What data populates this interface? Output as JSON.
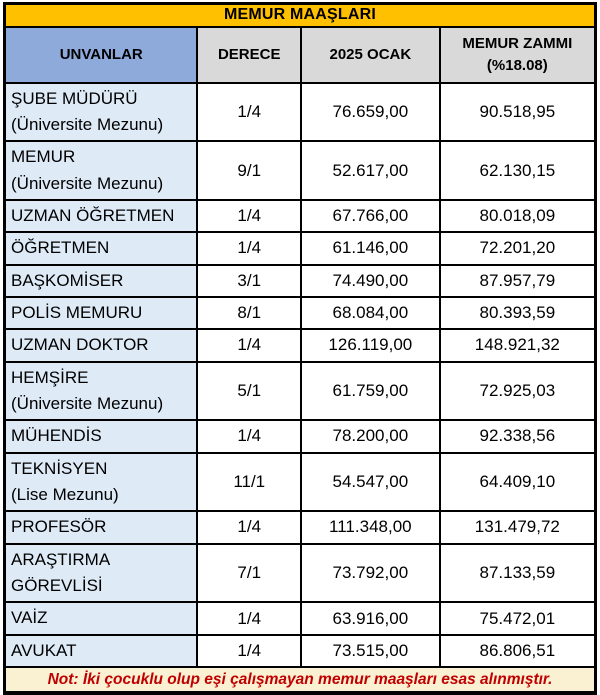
{
  "chart_data": {
    "type": "table",
    "title": "MEMUR MAAŞLARI",
    "columns": [
      {
        "label": "UNVANLAR"
      },
      {
        "label": "DERECE"
      },
      {
        "label": "2025 OCAK"
      },
      {
        "label": "MEMUR ZAMMI",
        "label_line2": "(%18.08)"
      }
    ],
    "rows": [
      {
        "unvan": "ŞUBE MÜDÜRÜ",
        "sub": "(Üniversite Mezunu)",
        "derece": "1/4",
        "ocak_2025": "76.659,00",
        "zam": "90.518,95"
      },
      {
        "unvan": "MEMUR",
        "sub": "(Üniversite Mezunu)",
        "derece": "9/1",
        "ocak_2025": "52.617,00",
        "zam": "62.130,15"
      },
      {
        "unvan": "UZMAN ÖĞRETMEN",
        "sub": "",
        "derece": "1/4",
        "ocak_2025": "67.766,00",
        "zam": "80.018,09"
      },
      {
        "unvan": "ÖĞRETMEN",
        "sub": "",
        "derece": "1/4",
        "ocak_2025": "61.146,00",
        "zam": "72.201,20"
      },
      {
        "unvan": "BAŞKOMİSER",
        "sub": "",
        "derece": "3/1",
        "ocak_2025": "74.490,00",
        "zam": "87.957,79"
      },
      {
        "unvan": "POLİS MEMURU",
        "sub": "",
        "derece": "8/1",
        "ocak_2025": "68.084,00",
        "zam": "80.393,59"
      },
      {
        "unvan": "UZMAN DOKTOR",
        "sub": "",
        "derece": "1/4",
        "ocak_2025": "126.119,00",
        "zam": "148.921,32"
      },
      {
        "unvan": "HEMŞİRE",
        "sub": "(Üniversite Mezunu)",
        "derece": "5/1",
        "ocak_2025": "61.759,00",
        "zam": "72.925,03"
      },
      {
        "unvan": "MÜHENDİS",
        "sub": "",
        "derece": "1/4",
        "ocak_2025": "78.200,00",
        "zam": "92.338,56"
      },
      {
        "unvan": "TEKNİSYEN",
        "sub": "(Lise Mezunu)",
        "derece": "11/1",
        "ocak_2025": "54.547,00",
        "zam": "64.409,10"
      },
      {
        "unvan": "PROFESÖR",
        "sub": "",
        "derece": "1/4",
        "ocak_2025": "111.348,00",
        "zam": "131.479,72"
      },
      {
        "unvan": "ARAŞTIRMA GÖREVLİSİ",
        "sub": "",
        "derece": "7/1",
        "ocak_2025": "73.792,00",
        "zam": "87.133,59"
      },
      {
        "unvan": "VAİZ",
        "sub": "",
        "derece": "1/4",
        "ocak_2025": "63.916,00",
        "zam": "75.472,01"
      },
      {
        "unvan": "AVUKAT",
        "sub": "",
        "derece": "1/4",
        "ocak_2025": "73.515,00",
        "zam": "86.806,51"
      }
    ],
    "note": "Not: İki çocuklu olup eşi çalışmayan memur maaşları esas alınmıştır."
  },
  "colors": {
    "title_bg": "#FFC000",
    "header_blue": "#8EAADB",
    "header_gray": "#D9D9D9",
    "label_bg": "#DEEAF6",
    "cell_bg": "#FFFFFF",
    "note_bg": "#FAF0D2",
    "note_text": "#C00000",
    "border": "#000000"
  }
}
